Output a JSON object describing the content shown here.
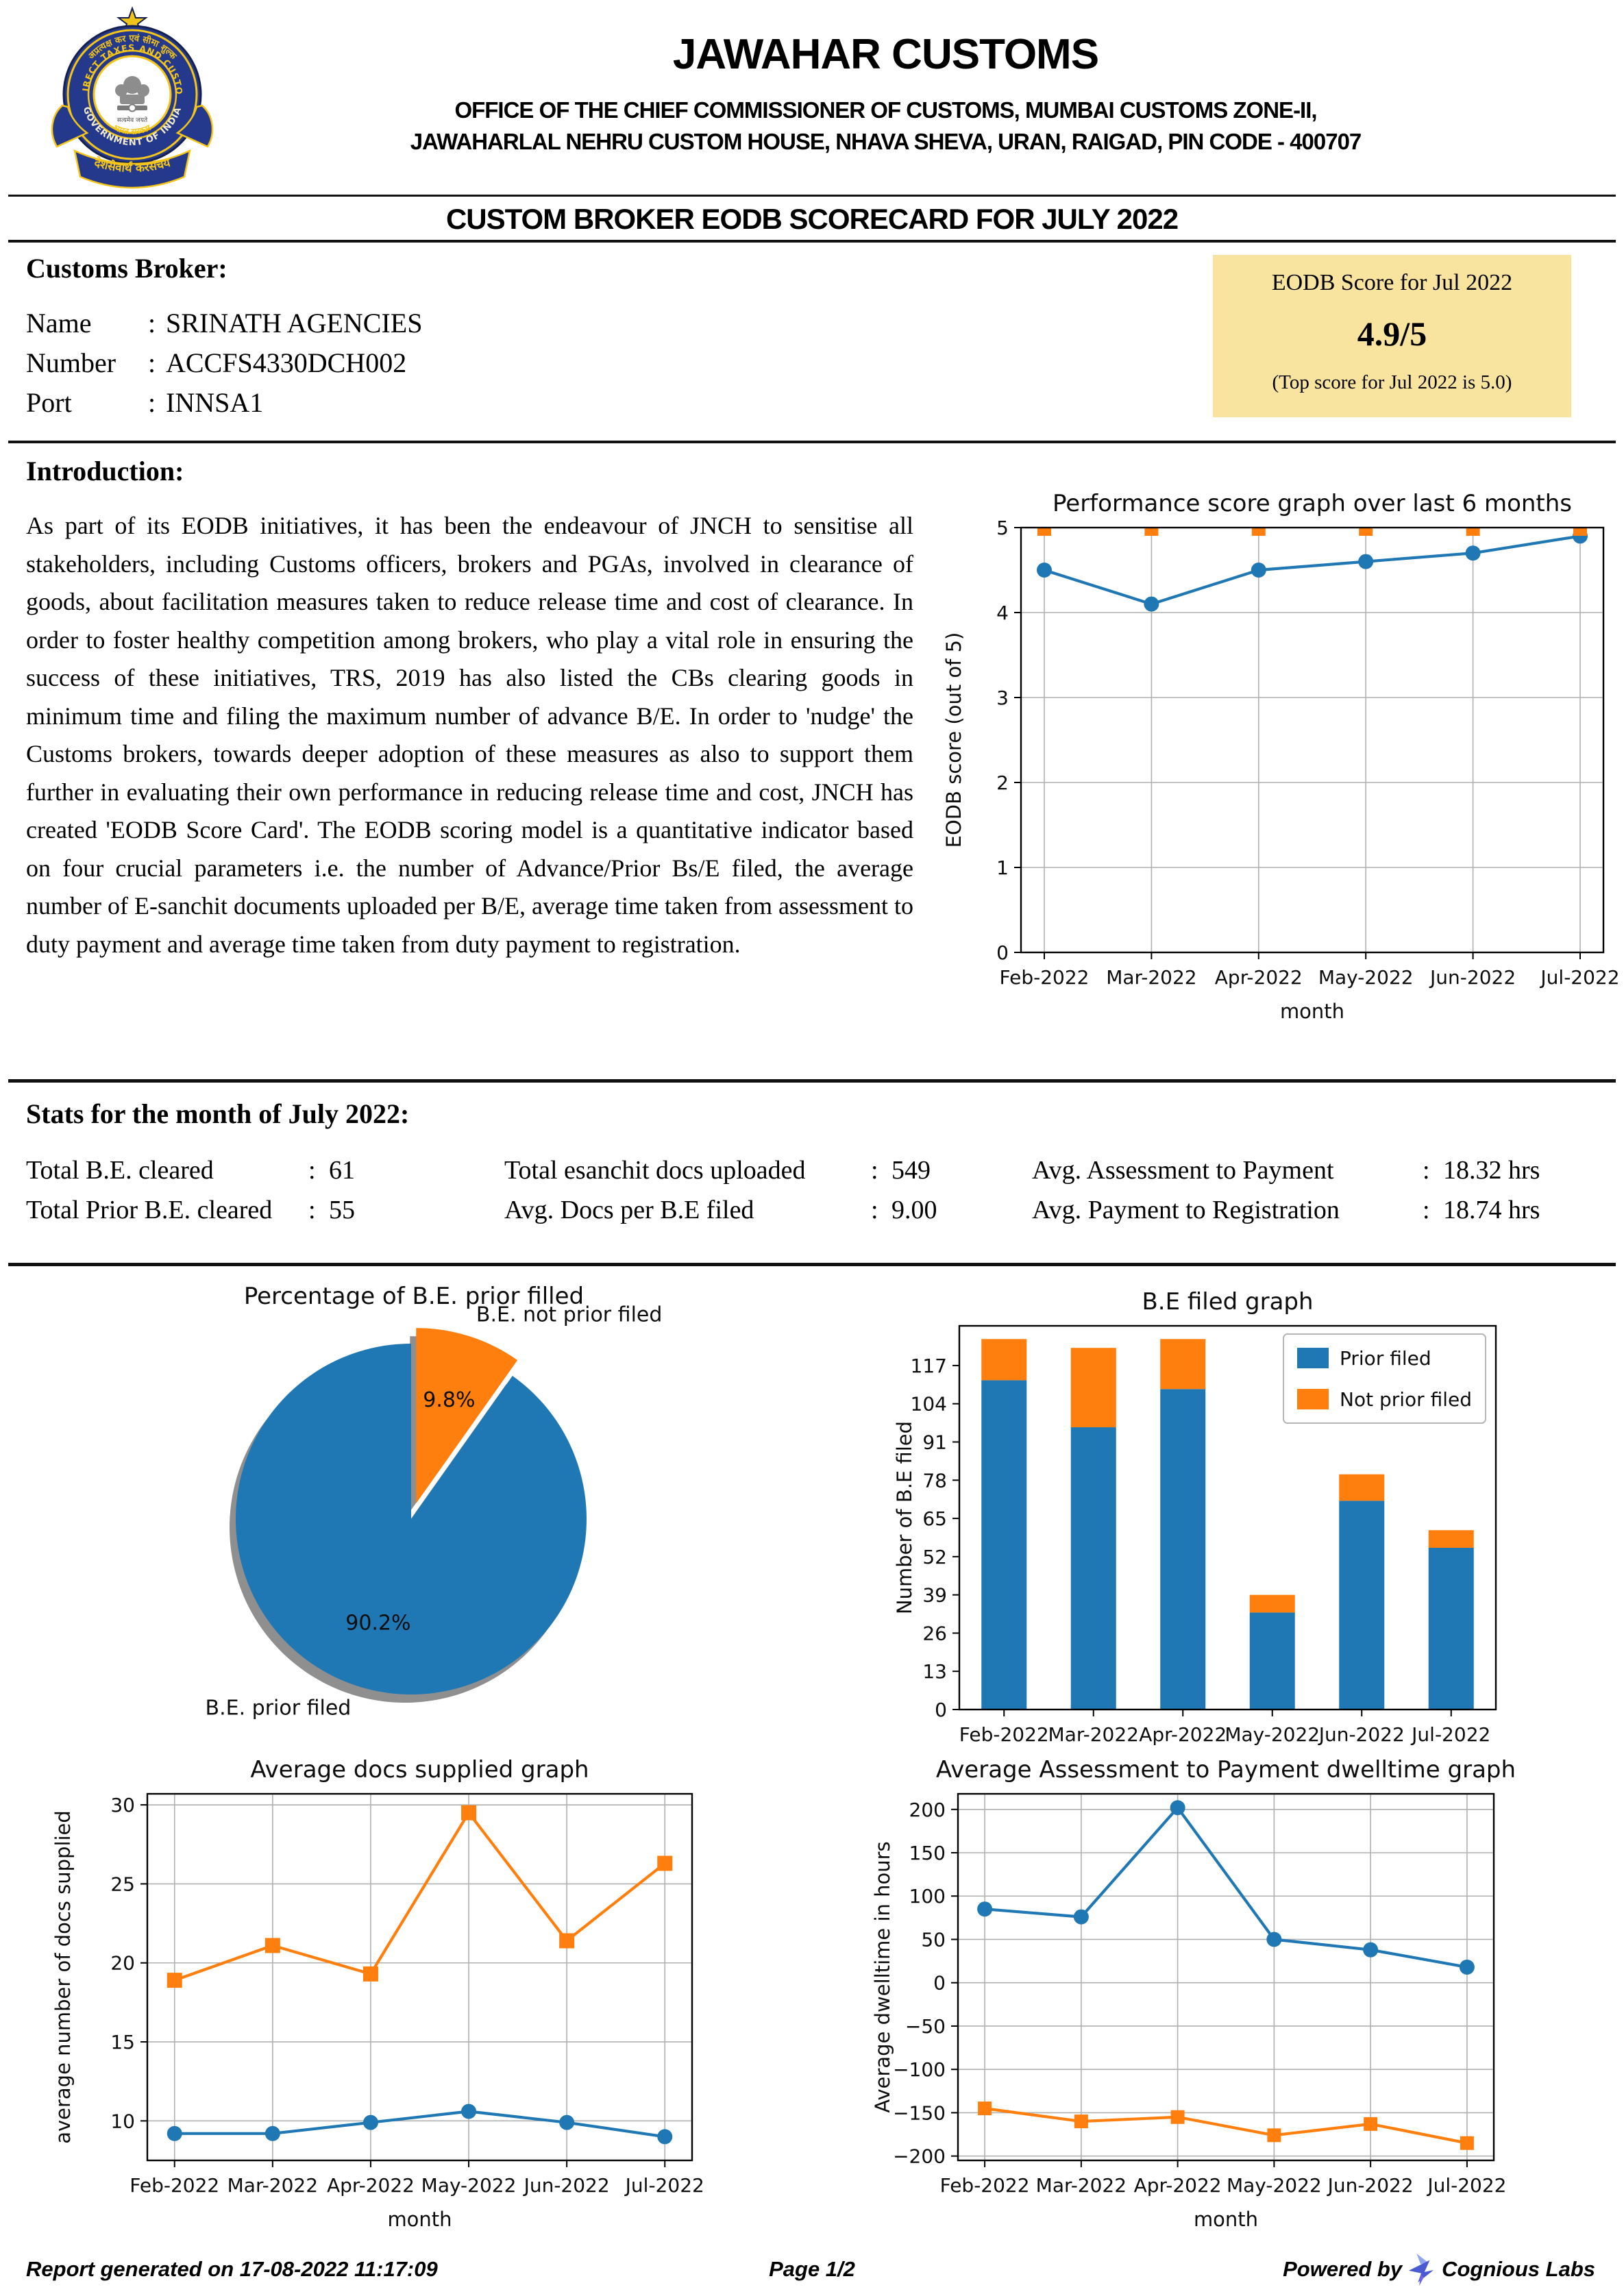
{
  "header": {
    "title": "JAWAHAR CUSTOMS",
    "address_line1": "OFFICE OF THE CHIEF COMMISSIONER OF CUSTOMS, MUMBAI CUSTOMS ZONE-II,",
    "address_line2": "JAWAHARLAL NEHRU CUSTOM HOUSE, NHAVA SHEVA, URAN, RAIGAD, PIN CODE - 400707",
    "logo": {
      "arc_hindi": "अप्रत्यक्ष कर एवं सीमा शुल्क",
      "arc_english": "INDIRECT TAXES AND CUSTOMS",
      "arc_government": "GOVERNMENT OF INDIA",
      "inner_hindi": "भारत सरकार",
      "inner_motto": "सत्यमेव जयते",
      "ribbon_hindi": "देशसेवार्थ करसंचय"
    }
  },
  "scorecard_title": "CUSTOM BROKER EODB SCORECARD FOR JULY 2022",
  "broker": {
    "section_label": "Customs Broker:",
    "fields": [
      {
        "label": "Name",
        "value": "SRINATH AGENCIES"
      },
      {
        "label": "Number",
        "value": "ACCFS4330DCH002"
      },
      {
        "label": "Port",
        "value": "INNSA1"
      }
    ]
  },
  "score_box": {
    "title": "EODB Score for Jul 2022",
    "score": "4.9/5",
    "note": "(Top score for Jul 2022 is 5.0)",
    "bg_color": "#f8e49e"
  },
  "introduction": {
    "heading": "Introduction:",
    "text": "As part of its EODB initiatives, it has been the endeavour of JNCH to sensitise all stakeholders, including Customs officers, brokers and PGAs, involved in clearance of goods, about facilitation measures taken to reduce release time and cost of clearance. In order to foster healthy competition among brokers, who play a vital role in ensuring the success of these initiatives, TRS, 2019 has also listed the CBs clearing goods in minimum time and filing the maximum number of advance B/E. In order to 'nudge' the Customs brokers, towards deeper adoption of these measures as also to support them further in evaluating their own performance in reducing release time and cost, JNCH has created 'EODB Score Card'. The EODB scoring model is a quantitative indicator based on four crucial parameters i.e. the number of Advance/Prior Bs/E filed, the average number of E-sanchit documents uploaded per B/E, average time taken from assessment to duty payment and average time taken from duty payment to registration."
  },
  "stats": {
    "heading": "Stats for the month of July 2022:",
    "items": [
      {
        "label": "Total B.E. cleared",
        "value": "61"
      },
      {
        "label": "Total Prior B.E. cleared",
        "value": "55"
      },
      {
        "label": "Total esanchit docs uploaded",
        "value": "549"
      },
      {
        "label": "Avg. Docs per B.E filed",
        "value": "9.00"
      },
      {
        "label": "Avg. Assessment to Payment",
        "value": "18.32 hrs"
      },
      {
        "label": "Avg. Payment to Registration",
        "value": "18.74 hrs"
      }
    ]
  },
  "footer": {
    "generated": "Report generated on 17-08-2022 11:17:09",
    "page": "Page 1/2",
    "powered_by": "Powered by",
    "brand": "Cognious Labs"
  },
  "colors": {
    "blue": "#1f77b4",
    "orange": "#ff7f0e",
    "score_box_bg": "#f8e49e"
  },
  "chart_data": [
    {
      "id": "performance",
      "type": "line",
      "title": "Performance score graph over last 6 months",
      "xlabel": "month",
      "ylabel": "EODB score (out of 5)",
      "categories": [
        "Feb-2022",
        "Mar-2022",
        "Apr-2022",
        "May-2022",
        "Jun-2022",
        "Jul-2022"
      ],
      "series": [
        {
          "color": "#1f77b4",
          "marker": "circle",
          "line": true,
          "values": [
            4.5,
            4.1,
            4.5,
            4.6,
            4.7,
            4.9
          ]
        },
        {
          "color": "#ff7f0e",
          "marker": "square",
          "line": false,
          "values": [
            5.0,
            5.0,
            5.0,
            5.0,
            5.0,
            5.0
          ]
        }
      ],
      "ylim": [
        0,
        5
      ],
      "yticks": [
        0,
        1,
        2,
        3,
        4,
        5
      ],
      "grid": true
    },
    {
      "id": "pie",
      "type": "pie",
      "title": "Percentage of B.E. prior filled",
      "start_angle": "top-clockwise",
      "shadow": true,
      "slices": [
        {
          "label": "B.E. not prior filed",
          "pct_label": "9.8%",
          "value": 9.8,
          "color": "#ff7f0e",
          "explode": true
        },
        {
          "label": "B.E. prior filed",
          "pct_label": "90.2%",
          "value": 90.2,
          "color": "#1f77b4",
          "explode": false
        }
      ]
    },
    {
      "id": "befiled",
      "type": "stacked_bar",
      "title": "B.E filed graph",
      "ylabel": "Number of B.E filed",
      "categories": [
        "Feb-2022",
        "Mar-2022",
        "Apr-2022",
        "May-2022",
        "Jun-2022",
        "Jul-2022"
      ],
      "series": [
        {
          "name": "Prior filed",
          "color": "#1f77b4",
          "values": [
            112,
            96,
            109,
            33,
            71,
            55
          ]
        },
        {
          "name": "Not prior filed",
          "color": "#ff7f0e",
          "values": [
            14,
            27,
            17,
            6,
            9,
            6
          ]
        }
      ],
      "yticks": [
        0,
        13,
        26,
        39,
        52,
        65,
        78,
        91,
        104,
        117
      ],
      "ylim": [
        0,
        130.5
      ],
      "grid": false,
      "legend_position": "upper-right"
    },
    {
      "id": "docs",
      "type": "line",
      "title": "Average docs supplied graph",
      "xlabel": "month",
      "ylabel": "average number of docs supplied",
      "categories": [
        "Feb-2022",
        "Mar-2022",
        "Apr-2022",
        "May-2022",
        "Jun-2022",
        "Jul-2022"
      ],
      "series": [
        {
          "color": "#ff7f0e",
          "marker": "square",
          "line": true,
          "values": [
            18.9,
            21.1,
            19.3,
            29.5,
            21.4,
            26.3
          ]
        },
        {
          "color": "#1f77b4",
          "marker": "circle",
          "line": true,
          "values": [
            9.2,
            9.2,
            9.9,
            10.6,
            9.9,
            9.0
          ]
        }
      ],
      "ylim": [
        7.5,
        30.7
      ],
      "yticks": [
        10,
        15,
        20,
        25,
        30
      ],
      "grid": true
    },
    {
      "id": "dwell",
      "type": "line",
      "title": "Average Assessment to Payment dwelltime graph",
      "xlabel": "month",
      "ylabel": "Average dwelltime in hours",
      "categories": [
        "Feb-2022",
        "Mar-2022",
        "Apr-2022",
        "May-2022",
        "Jun-2022",
        "Jul-2022"
      ],
      "series": [
        {
          "color": "#1f77b4",
          "marker": "circle",
          "line": true,
          "values": [
            85,
            76,
            202,
            50,
            38,
            18
          ]
        },
        {
          "color": "#ff7f0e",
          "marker": "square",
          "line": true,
          "values": [
            -145,
            -160,
            -155,
            -176,
            -163,
            -185
          ]
        }
      ],
      "ylim": [
        -205,
        218
      ],
      "yticks": [
        -200,
        -150,
        -100,
        -50,
        0,
        50,
        100,
        150,
        200
      ],
      "grid": true
    }
  ]
}
